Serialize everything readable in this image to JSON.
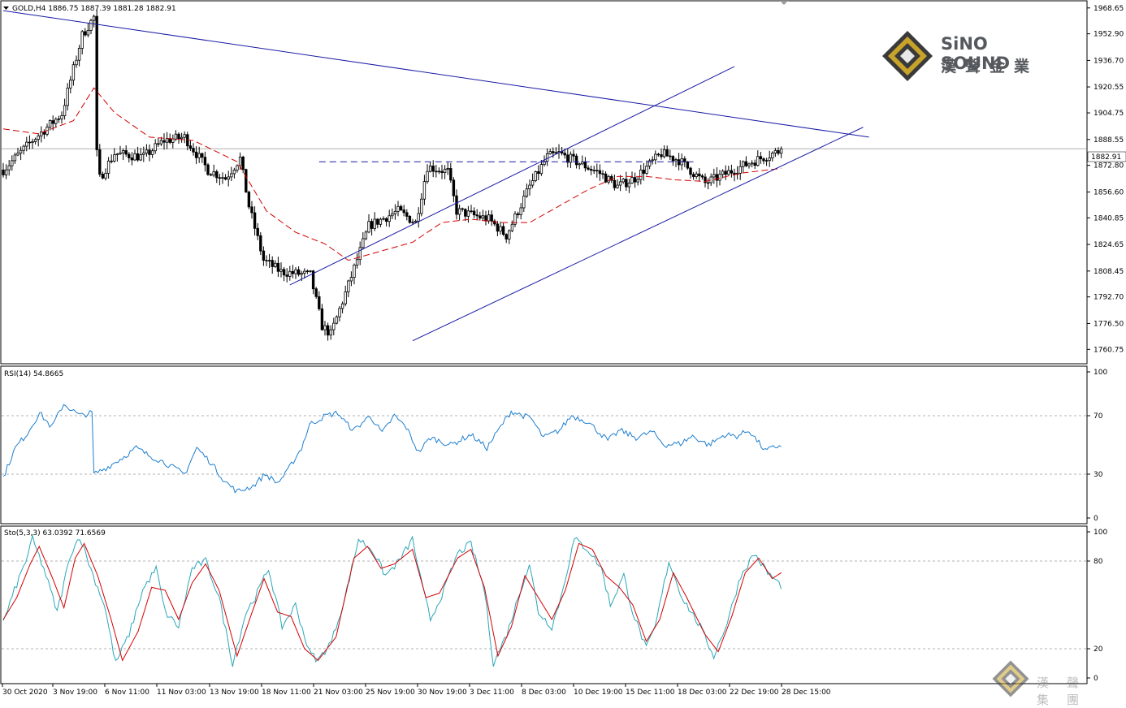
{
  "symbol_header": "GOLD,H4  1886.75 1887.39 1881.28 1882.91",
  "current_price_label": "1882.91",
  "brand": {
    "name": "SiNO SOUND",
    "name_cn": "漢聲金業",
    "watermark_cn": "漢聲集團",
    "colors": {
      "gold": "#c8a32a",
      "dark": "#3a3a3a",
      "text": "#55585c"
    }
  },
  "colors": {
    "bull": "#000000",
    "bear": "#000000",
    "ma": "#d40000",
    "trendline": "#1a1aa6",
    "rsi": "#1e7fd0",
    "sto_main": "#2aa6b8",
    "sto_signal": "#d40000",
    "grid_dash": "#9a9a9a",
    "price_line": "#b0b0b0"
  },
  "x_axis_labels": [
    "30 Oct 2020",
    "3 Nov 19:00",
    "6 Nov 11:00",
    "11 Nov 03:00",
    "13 Nov 19:00",
    "18 Nov 11:00",
    "21 Nov 03:00",
    "25 Nov 19:00",
    "30 Nov 19:00",
    "3 Dec 11:00",
    "8 Dec 03:00",
    "10 Dec 19:00",
    "15 Dec 11:00",
    "18 Dec 03:00",
    "22 Dec 19:00",
    "28 Dec 15:00"
  ],
  "chart_data": [
    {
      "type": "candlestick",
      "title": "GOLD,H4",
      "ylim": [
        1752.5,
        1972.5
      ],
      "y_ticks": [
        1968.65,
        1952.9,
        1936.7,
        1920.55,
        1904.75,
        1888.55,
        1872.8,
        1856.6,
        1840.85,
        1824.65,
        1808.45,
        1792.7,
        1776.5,
        1760.75
      ],
      "last_price": 1882.91,
      "ohlc_waypoints": [
        [
          0,
          1870
        ],
        [
          10,
          1888
        ],
        [
          20,
          1904
        ],
        [
          27,
          1952
        ],
        [
          31,
          1963
        ],
        [
          32,
          1880
        ],
        [
          33,
          1865
        ],
        [
          38,
          1880
        ],
        [
          48,
          1878
        ],
        [
          55,
          1888
        ],
        [
          62,
          1890
        ],
        [
          70,
          1870
        ],
        [
          76,
          1865
        ],
        [
          81,
          1877
        ],
        [
          84,
          1848
        ],
        [
          89,
          1815
        ],
        [
          95,
          1808
        ],
        [
          105,
          1806
        ],
        [
          109,
          1775
        ],
        [
          112,
          1770
        ],
        [
          118,
          1800
        ],
        [
          125,
          1836
        ],
        [
          135,
          1845
        ],
        [
          141,
          1838
        ],
        [
          145,
          1872
        ],
        [
          152,
          1869
        ],
        [
          155,
          1845
        ],
        [
          166,
          1840
        ],
        [
          172,
          1830
        ],
        [
          180,
          1860
        ],
        [
          186,
          1878
        ],
        [
          190,
          1880
        ],
        [
          196,
          1875
        ],
        [
          204,
          1868
        ],
        [
          210,
          1860
        ],
        [
          216,
          1865
        ],
        [
          225,
          1880
        ],
        [
          231,
          1876
        ],
        [
          240,
          1862
        ],
        [
          256,
          1875
        ],
        [
          266,
          1882
        ]
      ],
      "ma_waypoints": [
        [
          0,
          1895
        ],
        [
          12,
          1892
        ],
        [
          24,
          1900
        ],
        [
          31,
          1920
        ],
        [
          38,
          1905
        ],
        [
          50,
          1890
        ],
        [
          65,
          1888
        ],
        [
          80,
          1875
        ],
        [
          90,
          1845
        ],
        [
          100,
          1832
        ],
        [
          110,
          1825
        ],
        [
          118,
          1815
        ],
        [
          128,
          1820
        ],
        [
          140,
          1826
        ],
        [
          150,
          1838
        ],
        [
          160,
          1840
        ],
        [
          170,
          1838
        ],
        [
          180,
          1838
        ],
        [
          190,
          1848
        ],
        [
          200,
          1858
        ],
        [
          210,
          1866
        ],
        [
          220,
          1866
        ],
        [
          230,
          1864
        ],
        [
          240,
          1863
        ],
        [
          252,
          1868
        ],
        [
          266,
          1871
        ]
      ],
      "trendlines": [
        {
          "name": "descending resistance",
          "from": [
            0,
            1967
          ],
          "to": [
            296,
            1890
          ]
        },
        {
          "name": "channel top",
          "from": [
            98,
            1800
          ],
          "to": [
            250,
            1933
          ]
        },
        {
          "name": "channel bottom",
          "from": [
            140,
            1766
          ],
          "to": [
            294,
            1896
          ]
        },
        {
          "name": "horizontal",
          "from": [
            108,
            1875
          ],
          "to": [
            236,
            1875
          ],
          "dashed": true
        }
      ]
    },
    {
      "type": "line",
      "title": "RSI(14) 54.8665",
      "ylim": [
        0,
        100
      ],
      "levels": [
        70,
        30
      ],
      "axis_ticks": [
        100,
        70,
        30,
        0
      ],
      "waypoints": [
        [
          0,
          28
        ],
        [
          6,
          48
        ],
        [
          12,
          58
        ],
        [
          18,
          72
        ],
        [
          24,
          62
        ],
        [
          30,
          78
        ],
        [
          38,
          70
        ],
        [
          44,
          72
        ],
        [
          45,
          30
        ],
        [
          52,
          35
        ],
        [
          60,
          42
        ],
        [
          66,
          48
        ],
        [
          72,
          43
        ],
        [
          80,
          38
        ],
        [
          90,
          30
        ],
        [
          96,
          48
        ],
        [
          103,
          38
        ],
        [
          110,
          25
        ],
        [
          116,
          18
        ],
        [
          124,
          22
        ],
        [
          130,
          30
        ],
        [
          136,
          24
        ],
        [
          140,
          30
        ],
        [
          148,
          48
        ],
        [
          152,
          64
        ],
        [
          160,
          70
        ],
        [
          166,
          72
        ],
        [
          170,
          65
        ],
        [
          174,
          60
        ],
        [
          182,
          70
        ],
        [
          188,
          58
        ],
        [
          194,
          70
        ],
        [
          200,
          62
        ],
        [
          206,
          45
        ],
        [
          212,
          55
        ],
        [
          222,
          50
        ],
        [
          232,
          57
        ],
        [
          240,
          48
        ],
        [
          248,
          65
        ],
        [
          252,
          73
        ],
        [
          262,
          68
        ],
        [
          268,
          55
        ],
        [
          276,
          60
        ],
        [
          282,
          70
        ],
        [
          290,
          66
        ],
        [
          300,
          53
        ],
        [
          306,
          60
        ],
        [
          314,
          55
        ],
        [
          322,
          59
        ],
        [
          328,
          50
        ],
        [
          336,
          51
        ],
        [
          342,
          56
        ],
        [
          350,
          50
        ],
        [
          358,
          57
        ],
        [
          364,
          56
        ],
        [
          370,
          60
        ],
        [
          378,
          46
        ],
        [
          386,
          50
        ]
      ]
    },
    {
      "type": "line",
      "title": "Sto(5,3,3) 63.0392 71.6569",
      "ylim": [
        0,
        100
      ],
      "levels": [
        80,
        20
      ],
      "axis_ticks": [
        100,
        80,
        20,
        0
      ],
      "series": [
        {
          "name": "main",
          "waypoints": [
            [
              0,
              38
            ],
            [
              5,
              60
            ],
            [
              10,
              80
            ],
            [
              13,
              95
            ],
            [
              18,
              75
            ],
            [
              24,
              45
            ],
            [
              30,
              85
            ],
            [
              34,
              97
            ],
            [
              40,
              70
            ],
            [
              45,
              50
            ],
            [
              50,
              10
            ],
            [
              56,
              30
            ],
            [
              62,
              60
            ],
            [
              68,
              75
            ],
            [
              72,
              45
            ],
            [
              78,
              35
            ],
            [
              84,
              75
            ],
            [
              90,
              80
            ],
            [
              96,
              55
            ],
            [
              102,
              10
            ],
            [
              108,
              45
            ],
            [
              112,
              55
            ],
            [
              118,
              75
            ],
            [
              124,
              35
            ],
            [
              130,
              50
            ],
            [
              136,
              18
            ],
            [
              140,
              12
            ],
            [
              146,
              25
            ],
            [
              152,
              55
            ],
            [
              158,
              95
            ],
            [
              164,
              88
            ],
            [
              170,
              70
            ],
            [
              176,
              80
            ],
            [
              182,
              95
            ],
            [
              186,
              65
            ],
            [
              190,
              40
            ],
            [
              196,
              60
            ],
            [
              202,
              85
            ],
            [
              208,
              92
            ],
            [
              214,
              60
            ],
            [
              218,
              10
            ],
            [
              224,
              30
            ],
            [
              230,
              60
            ],
            [
              234,
              78
            ],
            [
              238,
              45
            ],
            [
              244,
              35
            ],
            [
              248,
              55
            ],
            [
              254,
              95
            ],
            [
              260,
              88
            ],
            [
              266,
              75
            ],
            [
              270,
              50
            ],
            [
              276,
              70
            ],
            [
              280,
              45
            ],
            [
              286,
              20
            ],
            [
              290,
              35
            ],
            [
              296,
              80
            ],
            [
              302,
              55
            ],
            [
              310,
              35
            ],
            [
              316,
              15
            ],
            [
              322,
              38
            ],
            [
              328,
              70
            ],
            [
              334,
              85
            ],
            [
              340,
              72
            ],
            [
              346,
              63
            ]
          ]
        },
        {
          "name": "signal",
          "waypoints": [
            [
              0,
              40
            ],
            [
              6,
              55
            ],
            [
              12,
              78
            ],
            [
              16,
              90
            ],
            [
              22,
              68
            ],
            [
              27,
              48
            ],
            [
              32,
              82
            ],
            [
              36,
              92
            ],
            [
              42,
              70
            ],
            [
              48,
              40
            ],
            [
              53,
              12
            ],
            [
              60,
              32
            ],
            [
              66,
              62
            ],
            [
              72,
              60
            ],
            [
              78,
              40
            ],
            [
              84,
              65
            ],
            [
              90,
              78
            ],
            [
              96,
              60
            ],
            [
              104,
              15
            ],
            [
              110,
              42
            ],
            [
              116,
              68
            ],
            [
              122,
              45
            ],
            [
              128,
              42
            ],
            [
              134,
              20
            ],
            [
              140,
              12
            ],
            [
              148,
              28
            ],
            [
              156,
              82
            ],
            [
              162,
              90
            ],
            [
              168,
              75
            ],
            [
              174,
              78
            ],
            [
              182,
              88
            ],
            [
              188,
              55
            ],
            [
              194,
              58
            ],
            [
              202,
              82
            ],
            [
              208,
              88
            ],
            [
              214,
              62
            ],
            [
              220,
              15
            ],
            [
              226,
              35
            ],
            [
              232,
              70
            ],
            [
              238,
              55
            ],
            [
              244,
              40
            ],
            [
              250,
              60
            ],
            [
              256,
              92
            ],
            [
              262,
              88
            ],
            [
              268,
              70
            ],
            [
              274,
              62
            ],
            [
              280,
              50
            ],
            [
              286,
              25
            ],
            [
              292,
              40
            ],
            [
              298,
              72
            ],
            [
              304,
              55
            ],
            [
              312,
              30
            ],
            [
              318,
              18
            ],
            [
              324,
              42
            ],
            [
              330,
              72
            ],
            [
              336,
              82
            ],
            [
              342,
              68
            ],
            [
              346,
              72
            ]
          ]
        }
      ]
    }
  ]
}
